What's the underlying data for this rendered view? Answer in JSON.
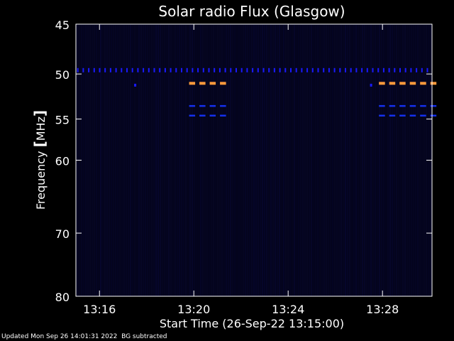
{
  "chart_data": {
    "type": "heatmap",
    "title": "Solar radio Flux (Glasgow)",
    "xlabel": "Start Time (26-Sep-22 13:15:00)",
    "ylabel_prefix": "Frequency ",
    "ylabel_unit": "MHz",
    "y_ticks": [
      45,
      50,
      55,
      60,
      70,
      80
    ],
    "x_ticks": [
      {
        "label": "13:16",
        "minute": 16
      },
      {
        "label": "13:20",
        "minute": 20
      },
      {
        "label": "13:24",
        "minute": 24
      },
      {
        "label": "13:28",
        "minute": 28
      }
    ],
    "xlim_minutes": [
      15,
      30.1
    ],
    "ylim_mhz": [
      45,
      80
    ],
    "log_scale_y": true,
    "background_color": "#04041c",
    "interference_bands": [
      {
        "mhz": 49.6,
        "start": 15.05,
        "end": 30.05,
        "color": "#1a1aff",
        "style": "dotted"
      },
      {
        "mhz": 51.0,
        "start": 19.8,
        "end": 21.5,
        "color": "#ff9a3c",
        "style": "dashed"
      },
      {
        "mhz": 51.0,
        "start": 27.85,
        "end": 30.1,
        "color": "#ff9a3c",
        "style": "dashed"
      },
      {
        "mhz": 53.5,
        "start": 19.8,
        "end": 21.5,
        "color": "#1530ee",
        "style": "dashed"
      },
      {
        "mhz": 53.5,
        "start": 27.85,
        "end": 30.1,
        "color": "#1530ee",
        "style": "dashed"
      },
      {
        "mhz": 54.6,
        "start": 19.8,
        "end": 21.5,
        "color": "#1530ee",
        "style": "dashed"
      },
      {
        "mhz": 54.6,
        "start": 27.85,
        "end": 30.1,
        "color": "#1530ee",
        "style": "dashed"
      }
    ],
    "isolated_marks": [
      {
        "mhz": 51.2,
        "minute": 17.5,
        "color": "#1a1aff"
      },
      {
        "mhz": 51.2,
        "minute": 27.5,
        "color": "#1a1aff"
      }
    ]
  },
  "footer": {
    "updated": "Updated Mon Sep 26 14:01:31 2022",
    "note": "BG subtracted"
  }
}
